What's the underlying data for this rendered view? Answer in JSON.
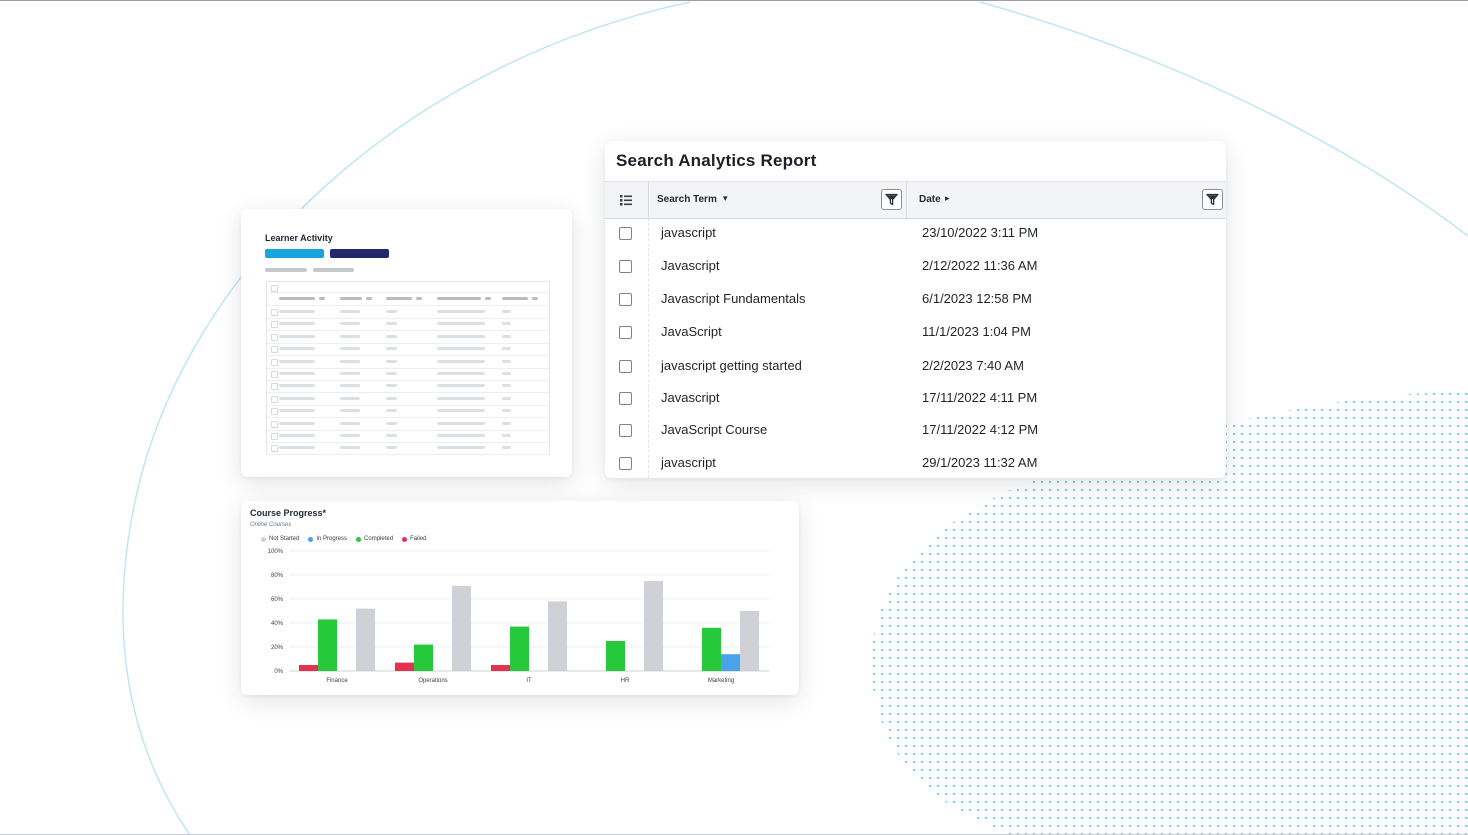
{
  "search_report": {
    "title": "Search Analytics Report",
    "columns": {
      "term": "Search Term",
      "term_sort": "▾",
      "date": "Date",
      "date_sort": "▸"
    },
    "icons": {
      "column_chooser": "list-icon",
      "filter": "filter-funnel-icon"
    },
    "rows": [
      {
        "term": "javascript",
        "date": "23/10/2022 3:11 PM"
      },
      {
        "term": "Javascript",
        "date": "2/12/2022 11:36 AM"
      },
      {
        "term": "Javascript Fundamentals",
        "date": "6/1/2023 12:58 PM"
      },
      {
        "term": "JavaScript",
        "date": "11/1/2023 1:04 PM"
      },
      {
        "term": "javascript getting started",
        "date": "2/2/2023 7:40 AM"
      },
      {
        "term": "Javascript",
        "date": "17/11/2022 4:11 PM"
      },
      {
        "term": "JavaScript Course",
        "date": "17/11/2022 4:12 PM"
      },
      {
        "term": "javascript",
        "date": "29/1/2023 11:32 AM"
      }
    ]
  },
  "learner_activity": {
    "title": "Learner Activity",
    "colors": {
      "pill_primary": "#1aa4dd",
      "pill_secondary": "#24296b"
    }
  },
  "course_progress": {
    "title": "Course Progress*",
    "subtitle": "Online Courses",
    "legend": [
      {
        "label": "Not Started",
        "color": "#cfd1d6"
      },
      {
        "label": "In Progress",
        "color": "#4aa3ea"
      },
      {
        "label": "Completed",
        "color": "#25c93b"
      },
      {
        "label": "Failed",
        "color": "#e5334f"
      }
    ]
  },
  "chart_data": {
    "type": "bar",
    "title": "Course Progress*",
    "subtitle": "Online Courses",
    "categories": [
      "Finance",
      "Operations",
      "IT",
      "HR",
      "Marketing"
    ],
    "series": [
      {
        "name": "Failed",
        "color": "#e5334f",
        "values": [
          5,
          7,
          5,
          0,
          0
        ]
      },
      {
        "name": "Completed",
        "color": "#25c93b",
        "values": [
          43,
          22,
          37,
          25,
          36
        ]
      },
      {
        "name": "In Progress",
        "color": "#4aa3ea",
        "values": [
          0,
          0,
          0,
          0,
          14
        ]
      },
      {
        "name": "Not Started",
        "color": "#cfd1d6",
        "values": [
          52,
          71,
          58,
          75,
          50
        ]
      }
    ],
    "y_ticks": [
      "0%",
      "20%",
      "40%",
      "60%",
      "80%",
      "100%"
    ],
    "ylim": [
      0,
      100
    ],
    "grid": true,
    "legend_position": "top-left"
  }
}
